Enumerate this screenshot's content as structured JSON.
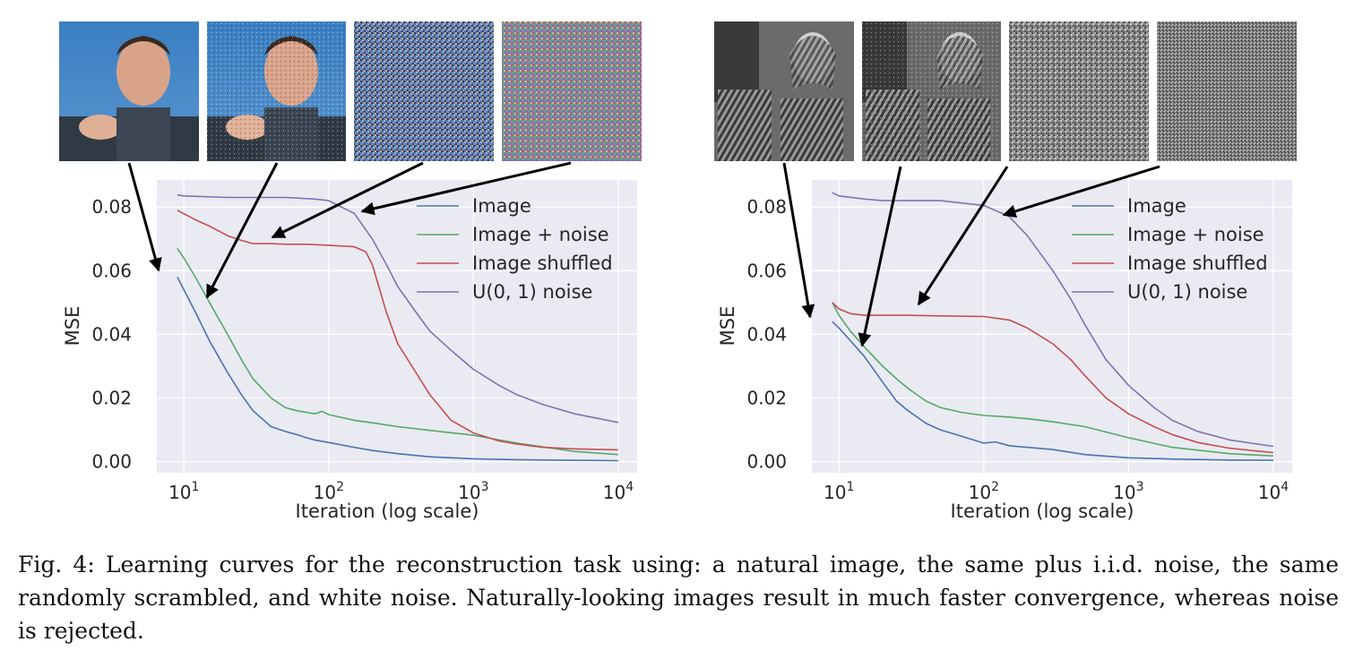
{
  "chart_data": [
    {
      "type": "line",
      "panel": "left",
      "title": "",
      "xlabel": "Iteration (log scale)",
      "ylabel": "MSE",
      "xscale": "log",
      "xlim": [
        6.5,
        13500
      ],
      "ylim": [
        -0.0035,
        0.0885
      ],
      "xticks": [
        {
          "value": 10,
          "base": "10",
          "exp": "1"
        },
        {
          "value": 100,
          "base": "10",
          "exp": "2"
        },
        {
          "value": 1000,
          "base": "10",
          "exp": "3"
        },
        {
          "value": 10000,
          "base": "10",
          "exp": "4"
        }
      ],
      "yticks": [
        {
          "value": 0.0,
          "label": "0.00"
        },
        {
          "value": 0.02,
          "label": "0.02"
        },
        {
          "value": 0.04,
          "label": "0.04"
        },
        {
          "value": 0.06,
          "label": "0.06"
        },
        {
          "value": 0.08,
          "label": "0.08"
        }
      ],
      "grid": true,
      "legend_position": "top-right",
      "thumbnails": [
        "natural photo of a man pointing",
        "same photo plus i.i.d. noise",
        "scrambled pixels (color)",
        "uniform color noise"
      ],
      "series": [
        {
          "name": "Image",
          "color": "#4c72b0",
          "x": [
            9,
            10,
            12,
            15,
            20,
            25,
            30,
            40,
            50,
            60,
            70,
            80,
            100,
            150,
            200,
            300,
            500,
            1000,
            2000,
            5000,
            10000
          ],
          "y": [
            0.058,
            0.054,
            0.047,
            0.038,
            0.028,
            0.021,
            0.016,
            0.011,
            0.0095,
            0.0085,
            0.0075,
            0.0068,
            0.006,
            0.0045,
            0.0035,
            0.0025,
            0.0015,
            0.0009,
            0.0006,
            0.0004,
            0.0003
          ]
        },
        {
          "name": "Image + noise",
          "color": "#55a868",
          "x": [
            9,
            10,
            12,
            15,
            20,
            25,
            30,
            40,
            50,
            60,
            70,
            80,
            90,
            100,
            150,
            200,
            300,
            500,
            1000,
            2000,
            5000,
            10000
          ],
          "y": [
            0.067,
            0.064,
            0.058,
            0.05,
            0.04,
            0.032,
            0.026,
            0.02,
            0.017,
            0.016,
            0.0155,
            0.015,
            0.0158,
            0.0148,
            0.013,
            0.0122,
            0.011,
            0.0098,
            0.0083,
            0.0058,
            0.0032,
            0.0022
          ]
        },
        {
          "name": "Image shuffled",
          "color": "#c44e52",
          "x": [
            9,
            12,
            15,
            20,
            25,
            30,
            40,
            50,
            70,
            100,
            150,
            180,
            200,
            250,
            300,
            400,
            500,
            700,
            1000,
            1500,
            2000,
            3000,
            5000,
            10000
          ],
          "y": [
            0.079,
            0.076,
            0.074,
            0.071,
            0.0695,
            0.0685,
            0.0685,
            0.0683,
            0.0683,
            0.068,
            0.0675,
            0.066,
            0.062,
            0.047,
            0.037,
            0.028,
            0.021,
            0.013,
            0.009,
            0.0065,
            0.0055,
            0.0045,
            0.004,
            0.0037
          ]
        },
        {
          "name": "U(0, 1) noise",
          "color": "#8172b2",
          "x": [
            9,
            10,
            20,
            50,
            80,
            100,
            150,
            200,
            250,
            300,
            400,
            500,
            700,
            1000,
            1500,
            2000,
            3000,
            5000,
            10000
          ],
          "y": [
            0.0838,
            0.0835,
            0.083,
            0.083,
            0.0825,
            0.082,
            0.078,
            0.07,
            0.062,
            0.055,
            0.047,
            0.041,
            0.035,
            0.029,
            0.024,
            0.021,
            0.018,
            0.015,
            0.0123
          ]
        }
      ]
    },
    {
      "type": "line",
      "panel": "right",
      "title": "",
      "xlabel": "Iteration (log scale)",
      "ylabel": "MSE",
      "xscale": "log",
      "xlim": [
        6.5,
        13500
      ],
      "ylim": [
        -0.0035,
        0.0885
      ],
      "xticks": [
        {
          "value": 10,
          "base": "10",
          "exp": "1"
        },
        {
          "value": 100,
          "base": "10",
          "exp": "2"
        },
        {
          "value": 1000,
          "base": "10",
          "exp": "3"
        },
        {
          "value": 10000,
          "base": "10",
          "exp": "4"
        }
      ],
      "yticks": [
        {
          "value": 0.0,
          "label": "0.00"
        },
        {
          "value": 0.02,
          "label": "0.02"
        },
        {
          "value": 0.04,
          "label": "0.04"
        },
        {
          "value": 0.06,
          "label": "0.06"
        },
        {
          "value": 0.08,
          "label": "0.08"
        }
      ],
      "grid": true,
      "legend_position": "top-right",
      "thumbnails": [
        "grayscale photo of a woman in a headscarf",
        "same photo plus i.i.d. noise",
        "scrambled pixels (grayscale)",
        "uniform grayscale noise"
      ],
      "series": [
        {
          "name": "Image",
          "color": "#4c72b0",
          "x": [
            9,
            10,
            12,
            15,
            20,
            25,
            30,
            40,
            50,
            70,
            100,
            120,
            150,
            200,
            300,
            500,
            1000,
            2000,
            5000,
            10000
          ],
          "y": [
            0.044,
            0.042,
            0.038,
            0.033,
            0.025,
            0.019,
            0.016,
            0.012,
            0.01,
            0.008,
            0.0058,
            0.0062,
            0.005,
            0.0045,
            0.0038,
            0.0022,
            0.0012,
            0.0008,
            0.0005,
            0.0004
          ]
        },
        {
          "name": "Image + noise",
          "color": "#55a868",
          "x": [
            9,
            10,
            12,
            15,
            20,
            25,
            30,
            40,
            50,
            70,
            100,
            150,
            200,
            300,
            500,
            1000,
            2000,
            5000,
            10000
          ],
          "y": [
            0.05,
            0.046,
            0.041,
            0.036,
            0.03,
            0.026,
            0.023,
            0.019,
            0.017,
            0.0155,
            0.0145,
            0.014,
            0.0135,
            0.0125,
            0.011,
            0.0075,
            0.0045,
            0.0025,
            0.0018
          ]
        },
        {
          "name": "Image shuffled",
          "color": "#c44e52",
          "x": [
            9,
            10,
            12,
            15,
            20,
            30,
            50,
            100,
            150,
            200,
            300,
            400,
            500,
            700,
            1000,
            1500,
            2000,
            3000,
            5000,
            10000
          ],
          "y": [
            0.05,
            0.048,
            0.0465,
            0.046,
            0.046,
            0.046,
            0.0458,
            0.0456,
            0.0445,
            0.042,
            0.037,
            0.032,
            0.027,
            0.02,
            0.015,
            0.011,
            0.0085,
            0.006,
            0.0042,
            0.0028
          ]
        },
        {
          "name": "U(0, 1) noise",
          "color": "#8172b2",
          "x": [
            9,
            10,
            15,
            20,
            50,
            100,
            150,
            200,
            300,
            400,
            500,
            700,
            1000,
            1500,
            2000,
            3000,
            5000,
            10000
          ],
          "y": [
            0.0845,
            0.0835,
            0.0825,
            0.082,
            0.082,
            0.0805,
            0.077,
            0.071,
            0.06,
            0.051,
            0.043,
            0.032,
            0.024,
            0.017,
            0.013,
            0.0095,
            0.0068,
            0.0048
          ]
        }
      ]
    }
  ],
  "caption": {
    "label": "Fig. 4:",
    "text": "Learning curves for the reconstruction task using: a natural image, the same plus i.i.d. noise, the same randomly scrambled, and white noise. Naturally-looking images result in much faster convergence, whereas noise is rejected."
  }
}
